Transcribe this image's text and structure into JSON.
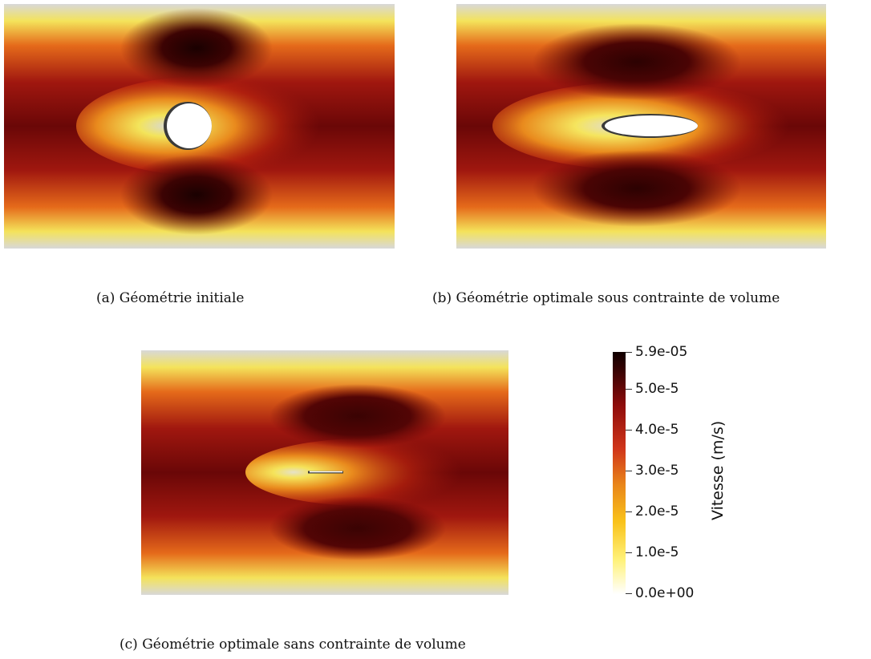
{
  "figure": {
    "panels": [
      {
        "id": "a",
        "caption": "(a)  Géométrie initiale",
        "obstacle": "circle"
      },
      {
        "id": "b",
        "caption": "(b)  Géométrie optimale sous contrainte de volume",
        "obstacle": "ellipse"
      },
      {
        "id": "c",
        "caption": "(c)  Géométrie optimale sans contrainte de volume",
        "obstacle": "needle"
      }
    ],
    "colorbar": {
      "title": "Vitesse (m/s)",
      "ticks": [
        "5.9e-05",
        "5.0e-5",
        "4.0e-5",
        "3.0e-5",
        "2.0e-5",
        "1.0e-5",
        "0.0e+00"
      ],
      "colormap": [
        "#ffffff",
        "#fff27a",
        "#f9c21a",
        "#e9861a",
        "#d0351a",
        "#8e0c0b",
        "#3a0303",
        "#100000"
      ],
      "range": [
        0,
        5.9e-05
      ]
    }
  }
}
